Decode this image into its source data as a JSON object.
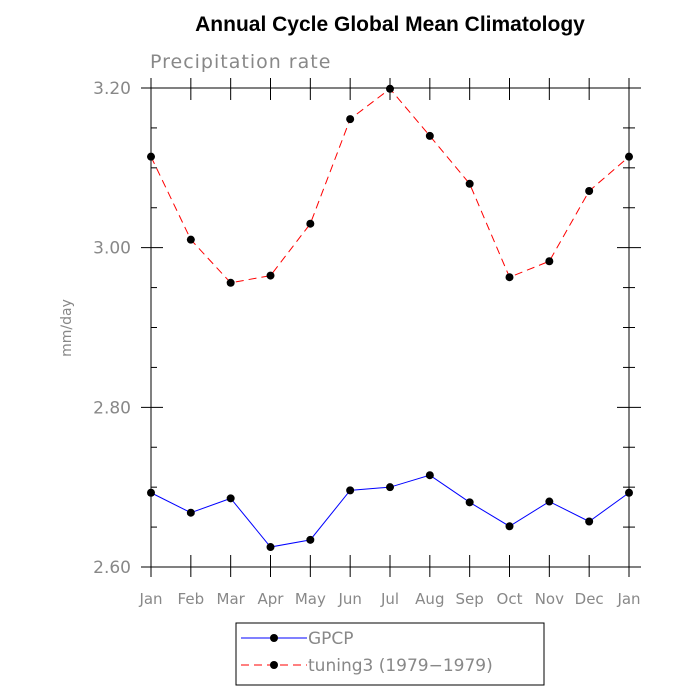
{
  "chart_data": {
    "type": "line",
    "title": "Annual Cycle Global Mean Climatology",
    "subtitle": "Precipitation rate",
    "ylabel": "mm/day",
    "xlabel": "",
    "categories": [
      "Jan",
      "Feb",
      "Mar",
      "Apr",
      "May",
      "Jun",
      "Jul",
      "Aug",
      "Sep",
      "Oct",
      "Nov",
      "Dec",
      "Jan"
    ],
    "ylim": [
      2.6,
      3.2
    ],
    "yticks": [
      2.6,
      2.8,
      3.0,
      3.2
    ],
    "ytick_labels": [
      "2.60",
      "2.80",
      "3.00",
      "3.20"
    ],
    "grid": false,
    "legend_position": "bottom-center",
    "series": [
      {
        "name": "GPCP",
        "color": "#0000ff",
        "dash": "solid",
        "values": [
          2.693,
          2.668,
          2.686,
          2.625,
          2.634,
          2.696,
          2.7,
          2.715,
          2.681,
          2.651,
          2.682,
          2.657,
          2.693
        ]
      },
      {
        "name": "tuning3 (1979−1979)",
        "color": "#ff0000",
        "dash": "dashed",
        "values": [
          3.114,
          3.01,
          2.956,
          2.965,
          3.03,
          3.161,
          3.199,
          3.14,
          3.08,
          2.963,
          2.983,
          3.071,
          3.114
        ]
      }
    ]
  }
}
